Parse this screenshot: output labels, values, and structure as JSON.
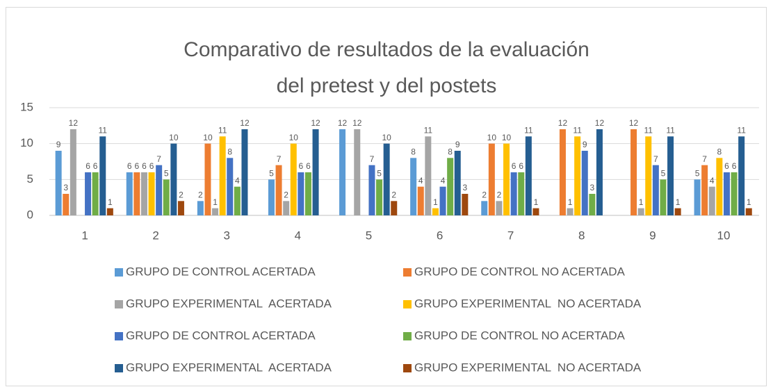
{
  "chart_data": {
    "type": "bar",
    "title": "Comparativo de resultados de la evaluación del pretest y del postets",
    "categories": [
      "1",
      "2",
      "3",
      "4",
      "5",
      "6",
      "7",
      "8",
      "9",
      "10"
    ],
    "series": [
      {
        "name": "GRUPO DE CONTROL ACERTADA",
        "color": "#5b9bd5",
        "values": [
          9,
          6,
          2,
          5,
          12,
          8,
          2,
          null,
          null,
          5
        ]
      },
      {
        "name": "GRUPO DE CONTROL NO ACERTADA",
        "color": "#ed7d31",
        "values": [
          3,
          6,
          10,
          7,
          null,
          4,
          10,
          12,
          12,
          7
        ]
      },
      {
        "name": "GRUPO EXPERIMENTAL  ACERTADA",
        "color": "#a5a5a5",
        "values": [
          12,
          6,
          1,
          2,
          12,
          11,
          2,
          1,
          1,
          4
        ]
      },
      {
        "name": "GRUPO EXPERIMENTAL  NO ACERTADA",
        "color": "#ffc000",
        "values": [
          null,
          6,
          11,
          10,
          null,
          1,
          10,
          11,
          11,
          8
        ]
      },
      {
        "name": "GRUPO DE CONTROL ACERTADA",
        "color": "#4472c4",
        "values": [
          6,
          7,
          8,
          6,
          7,
          4,
          6,
          9,
          7,
          6
        ]
      },
      {
        "name": "GRUPO DE CONTROL NO ACERTADA",
        "color": "#70ad47",
        "values": [
          6,
          5,
          4,
          6,
          5,
          8,
          6,
          3,
          5,
          6
        ]
      },
      {
        "name": "GRUPO EXPERIMENTAL  ACERTADA",
        "color": "#255e91",
        "values": [
          11,
          10,
          12,
          12,
          10,
          9,
          11,
          12,
          11,
          11
        ]
      },
      {
        "name": "GRUPO EXPERIMENTAL  NO ACERTADA",
        "color": "#9e480e",
        "values": [
          1,
          2,
          null,
          null,
          2,
          3,
          1,
          null,
          1,
          1
        ]
      }
    ],
    "ylim": [
      0,
      15
    ],
    "yticks": [
      0,
      5,
      10,
      15
    ],
    "grid": true
  }
}
